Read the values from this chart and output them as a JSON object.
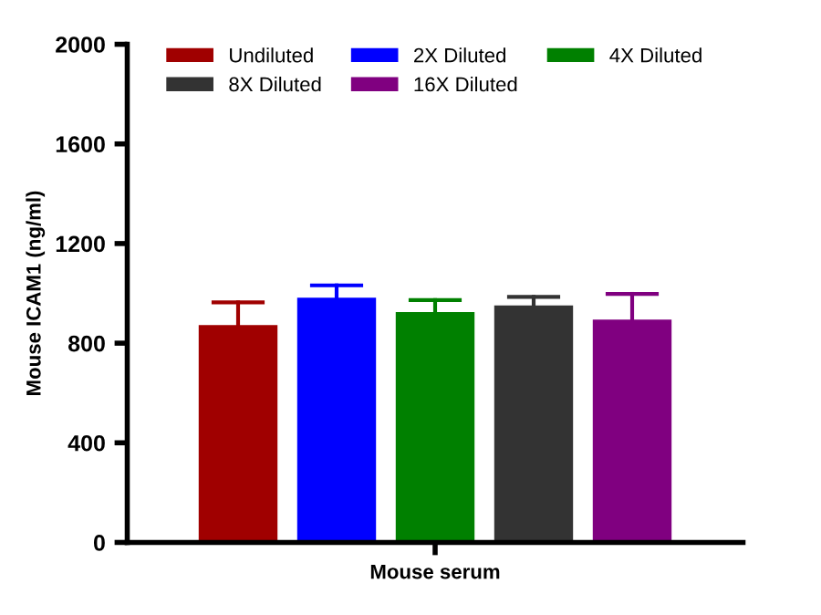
{
  "chart_data": {
    "type": "bar",
    "ylabel": "Mouse ICAM1 (ng/ml)",
    "categories": [
      "Mouse serum"
    ],
    "series": [
      {
        "name": "Undiluted",
        "color": "#a00000",
        "values": [
          873
        ],
        "errors": [
          [
            873,
            964
          ]
        ]
      },
      {
        "name": "2X Diluted",
        "color": "#0000ff",
        "values": [
          983
        ],
        "errors": [
          [
            983,
            1032
          ]
        ]
      },
      {
        "name": "4X Diluted",
        "color": "#008000",
        "values": [
          925
        ],
        "errors": [
          [
            925,
            973
          ]
        ]
      },
      {
        "name": "8X Diluted",
        "color": "#333333",
        "values": [
          951
        ],
        "errors": [
          [
            951,
            986
          ]
        ]
      },
      {
        "name": "16X Diluted",
        "color": "#800080",
        "values": [
          895
        ],
        "errors": [
          [
            895,
            998
          ]
        ]
      }
    ],
    "ylim": [
      0,
      2000
    ],
    "yticks": [
      0,
      400,
      800,
      1200,
      1600,
      2000
    ],
    "grid": false,
    "legend": "top"
  }
}
